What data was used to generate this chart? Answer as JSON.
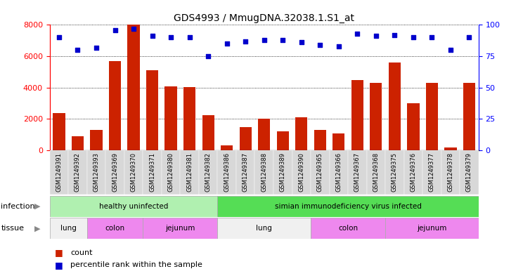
{
  "title": "GDS4993 / MmugDNA.32038.1.S1_at",
  "samples": [
    "GSM1249391",
    "GSM1249392",
    "GSM1249393",
    "GSM1249369",
    "GSM1249370",
    "GSM1249371",
    "GSM1249380",
    "GSM1249381",
    "GSM1249382",
    "GSM1249386",
    "GSM1249387",
    "GSM1249388",
    "GSM1249389",
    "GSM1249390",
    "GSM1249365",
    "GSM1249366",
    "GSM1249367",
    "GSM1249368",
    "GSM1249375",
    "GSM1249376",
    "GSM1249377",
    "GSM1249378",
    "GSM1249379"
  ],
  "counts": [
    2400,
    900,
    1300,
    5700,
    8000,
    5100,
    4100,
    4050,
    2250,
    300,
    1500,
    2000,
    1200,
    2100,
    1300,
    1100,
    4500,
    4300,
    5600,
    3000,
    4300,
    200,
    4300
  ],
  "percentiles": [
    90,
    80,
    82,
    96,
    97,
    91,
    90,
    90,
    75,
    85,
    87,
    88,
    88,
    86,
    84,
    83,
    93,
    91,
    92,
    90,
    90,
    80,
    90
  ],
  "bar_color": "#cc2200",
  "dot_color": "#0000cc",
  "ylim_left": [
    0,
    8000
  ],
  "ylim_right": [
    0,
    100
  ],
  "yticks_left": [
    0,
    2000,
    4000,
    6000,
    8000
  ],
  "yticks_right": [
    0,
    25,
    50,
    75,
    100
  ],
  "infection_groups": [
    {
      "label": "healthy uninfected",
      "start": 0,
      "end": 9,
      "color": "#b0f0b0"
    },
    {
      "label": "simian immunodeficiency virus infected",
      "start": 9,
      "end": 23,
      "color": "#55dd55"
    }
  ],
  "tissue_groups": [
    {
      "label": "lung",
      "start": 0,
      "end": 2,
      "color": "#f0f0f0"
    },
    {
      "label": "colon",
      "start": 2,
      "end": 5,
      "color": "#ee88ee"
    },
    {
      "label": "jejunum",
      "start": 5,
      "end": 9,
      "color": "#ee88ee"
    },
    {
      "label": "lung",
      "start": 9,
      "end": 14,
      "color": "#f0f0f0"
    },
    {
      "label": "colon",
      "start": 14,
      "end": 18,
      "color": "#ee88ee"
    },
    {
      "label": "jejunum",
      "start": 18,
      "end": 23,
      "color": "#ee88ee"
    }
  ],
  "legend_count_color": "#cc2200",
  "legend_dot_color": "#0000cc",
  "tick_bg_color": "#d8d8d8"
}
